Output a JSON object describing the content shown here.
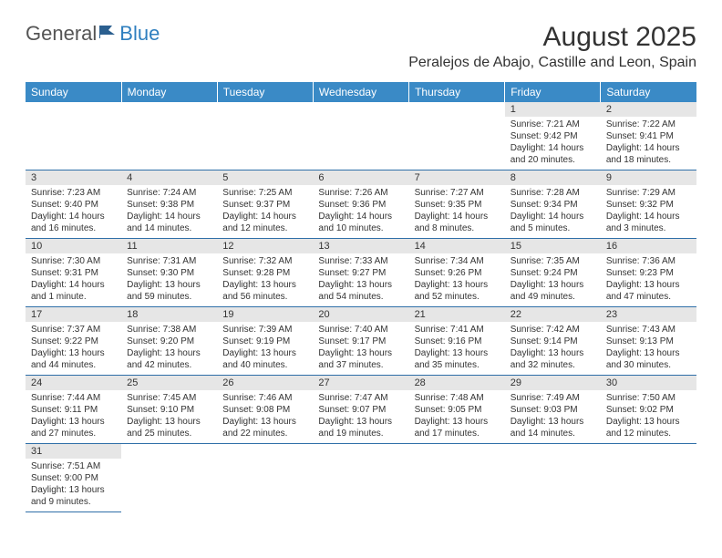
{
  "logo": {
    "text1": "General",
    "text2": "Blue"
  },
  "title": "August 2025",
  "location": "Peralejos de Abajo, Castille and Leon, Spain",
  "colors": {
    "header_bg": "#3a8ac6",
    "header_text": "#ffffff",
    "daynum_bg": "#e6e6e6",
    "border": "#2f6fa8",
    "logo_general": "#555555",
    "logo_blue": "#2f7fbf",
    "text": "#333333"
  },
  "weekdays": [
    "Sunday",
    "Monday",
    "Tuesday",
    "Wednesday",
    "Thursday",
    "Friday",
    "Saturday"
  ],
  "weeks": [
    [
      null,
      null,
      null,
      null,
      null,
      {
        "n": "1",
        "sr": "Sunrise: 7:21 AM",
        "ss": "Sunset: 9:42 PM",
        "d1": "Daylight: 14 hours",
        "d2": "and 20 minutes."
      },
      {
        "n": "2",
        "sr": "Sunrise: 7:22 AM",
        "ss": "Sunset: 9:41 PM",
        "d1": "Daylight: 14 hours",
        "d2": "and 18 minutes."
      }
    ],
    [
      {
        "n": "3",
        "sr": "Sunrise: 7:23 AM",
        "ss": "Sunset: 9:40 PM",
        "d1": "Daylight: 14 hours",
        "d2": "and 16 minutes."
      },
      {
        "n": "4",
        "sr": "Sunrise: 7:24 AM",
        "ss": "Sunset: 9:38 PM",
        "d1": "Daylight: 14 hours",
        "d2": "and 14 minutes."
      },
      {
        "n": "5",
        "sr": "Sunrise: 7:25 AM",
        "ss": "Sunset: 9:37 PM",
        "d1": "Daylight: 14 hours",
        "d2": "and 12 minutes."
      },
      {
        "n": "6",
        "sr": "Sunrise: 7:26 AM",
        "ss": "Sunset: 9:36 PM",
        "d1": "Daylight: 14 hours",
        "d2": "and 10 minutes."
      },
      {
        "n": "7",
        "sr": "Sunrise: 7:27 AM",
        "ss": "Sunset: 9:35 PM",
        "d1": "Daylight: 14 hours",
        "d2": "and 8 minutes."
      },
      {
        "n": "8",
        "sr": "Sunrise: 7:28 AM",
        "ss": "Sunset: 9:34 PM",
        "d1": "Daylight: 14 hours",
        "d2": "and 5 minutes."
      },
      {
        "n": "9",
        "sr": "Sunrise: 7:29 AM",
        "ss": "Sunset: 9:32 PM",
        "d1": "Daylight: 14 hours",
        "d2": "and 3 minutes."
      }
    ],
    [
      {
        "n": "10",
        "sr": "Sunrise: 7:30 AM",
        "ss": "Sunset: 9:31 PM",
        "d1": "Daylight: 14 hours",
        "d2": "and 1 minute."
      },
      {
        "n": "11",
        "sr": "Sunrise: 7:31 AM",
        "ss": "Sunset: 9:30 PM",
        "d1": "Daylight: 13 hours",
        "d2": "and 59 minutes."
      },
      {
        "n": "12",
        "sr": "Sunrise: 7:32 AM",
        "ss": "Sunset: 9:28 PM",
        "d1": "Daylight: 13 hours",
        "d2": "and 56 minutes."
      },
      {
        "n": "13",
        "sr": "Sunrise: 7:33 AM",
        "ss": "Sunset: 9:27 PM",
        "d1": "Daylight: 13 hours",
        "d2": "and 54 minutes."
      },
      {
        "n": "14",
        "sr": "Sunrise: 7:34 AM",
        "ss": "Sunset: 9:26 PM",
        "d1": "Daylight: 13 hours",
        "d2": "and 52 minutes."
      },
      {
        "n": "15",
        "sr": "Sunrise: 7:35 AM",
        "ss": "Sunset: 9:24 PM",
        "d1": "Daylight: 13 hours",
        "d2": "and 49 minutes."
      },
      {
        "n": "16",
        "sr": "Sunrise: 7:36 AM",
        "ss": "Sunset: 9:23 PM",
        "d1": "Daylight: 13 hours",
        "d2": "and 47 minutes."
      }
    ],
    [
      {
        "n": "17",
        "sr": "Sunrise: 7:37 AM",
        "ss": "Sunset: 9:22 PM",
        "d1": "Daylight: 13 hours",
        "d2": "and 44 minutes."
      },
      {
        "n": "18",
        "sr": "Sunrise: 7:38 AM",
        "ss": "Sunset: 9:20 PM",
        "d1": "Daylight: 13 hours",
        "d2": "and 42 minutes."
      },
      {
        "n": "19",
        "sr": "Sunrise: 7:39 AM",
        "ss": "Sunset: 9:19 PM",
        "d1": "Daylight: 13 hours",
        "d2": "and 40 minutes."
      },
      {
        "n": "20",
        "sr": "Sunrise: 7:40 AM",
        "ss": "Sunset: 9:17 PM",
        "d1": "Daylight: 13 hours",
        "d2": "and 37 minutes."
      },
      {
        "n": "21",
        "sr": "Sunrise: 7:41 AM",
        "ss": "Sunset: 9:16 PM",
        "d1": "Daylight: 13 hours",
        "d2": "and 35 minutes."
      },
      {
        "n": "22",
        "sr": "Sunrise: 7:42 AM",
        "ss": "Sunset: 9:14 PM",
        "d1": "Daylight: 13 hours",
        "d2": "and 32 minutes."
      },
      {
        "n": "23",
        "sr": "Sunrise: 7:43 AM",
        "ss": "Sunset: 9:13 PM",
        "d1": "Daylight: 13 hours",
        "d2": "and 30 minutes."
      }
    ],
    [
      {
        "n": "24",
        "sr": "Sunrise: 7:44 AM",
        "ss": "Sunset: 9:11 PM",
        "d1": "Daylight: 13 hours",
        "d2": "and 27 minutes."
      },
      {
        "n": "25",
        "sr": "Sunrise: 7:45 AM",
        "ss": "Sunset: 9:10 PM",
        "d1": "Daylight: 13 hours",
        "d2": "and 25 minutes."
      },
      {
        "n": "26",
        "sr": "Sunrise: 7:46 AM",
        "ss": "Sunset: 9:08 PM",
        "d1": "Daylight: 13 hours",
        "d2": "and 22 minutes."
      },
      {
        "n": "27",
        "sr": "Sunrise: 7:47 AM",
        "ss": "Sunset: 9:07 PM",
        "d1": "Daylight: 13 hours",
        "d2": "and 19 minutes."
      },
      {
        "n": "28",
        "sr": "Sunrise: 7:48 AM",
        "ss": "Sunset: 9:05 PM",
        "d1": "Daylight: 13 hours",
        "d2": "and 17 minutes."
      },
      {
        "n": "29",
        "sr": "Sunrise: 7:49 AM",
        "ss": "Sunset: 9:03 PM",
        "d1": "Daylight: 13 hours",
        "d2": "and 14 minutes."
      },
      {
        "n": "30",
        "sr": "Sunrise: 7:50 AM",
        "ss": "Sunset: 9:02 PM",
        "d1": "Daylight: 13 hours",
        "d2": "and 12 minutes."
      }
    ],
    [
      {
        "n": "31",
        "sr": "Sunrise: 7:51 AM",
        "ss": "Sunset: 9:00 PM",
        "d1": "Daylight: 13 hours",
        "d2": "and 9 minutes."
      },
      null,
      null,
      null,
      null,
      null,
      null
    ]
  ]
}
